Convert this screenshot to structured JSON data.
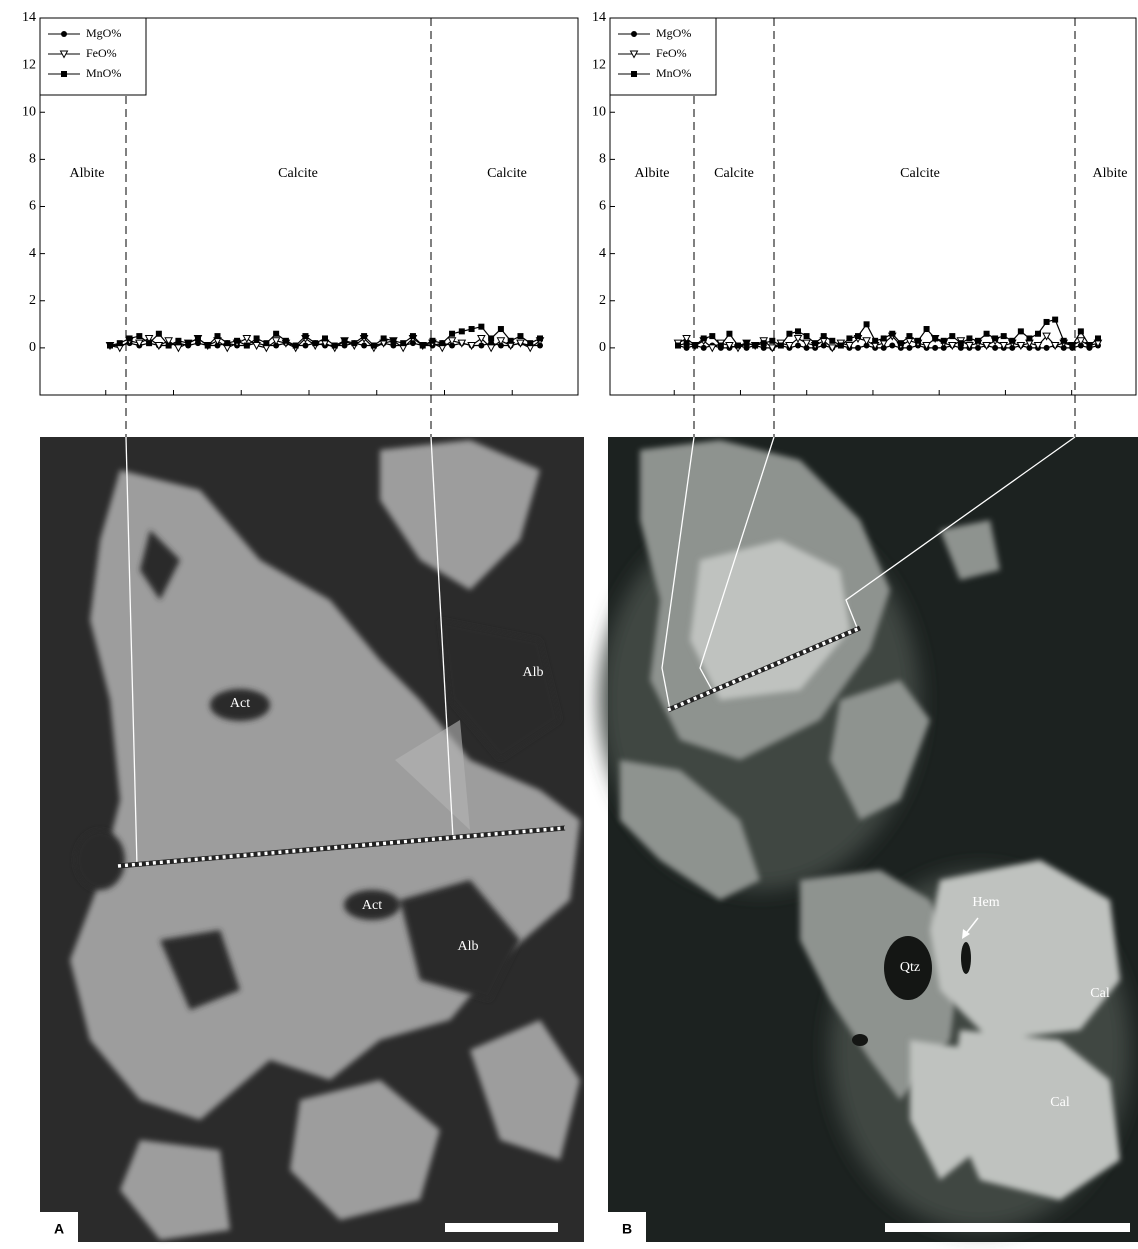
{
  "chart_data": [
    {
      "type": "line",
      "ylim": [
        -2,
        14
      ],
      "yticks": [
        0,
        2,
        4,
        6,
        8,
        10,
        12,
        14
      ],
      "legend": "upper left",
      "regions": [
        "Albite",
        "Calcite",
        "Calcite"
      ],
      "series": [
        {
          "name": "MgO%",
          "color": "#000000",
          "marker": "circle",
          "values": [
            0.1,
            0.1,
            0.2,
            0.1,
            0.2,
            0.1,
            0.1,
            0.2,
            0.1,
            0.2,
            0.1,
            0.1,
            0.2,
            0.1,
            0.1,
            0.2,
            0.1,
            0.1,
            0.2,
            0.1,
            0.1,
            0.2,
            0.1,
            0.1,
            0.1,
            0.2,
            0.1,
            0.1,
            0.2,
            0.1,
            0.1,
            0.2,
            0.1,
            0.1,
            0.2,
            0.1,
            0.2,
            0.1,
            0.1,
            0.2,
            0.1,
            0.1,
            0.2,
            0.1,
            0.1
          ]
        },
        {
          "name": "FeO%",
          "color": "#000000",
          "marker": "triangle",
          "values": [
            0.1,
            0,
            0.3,
            0.2,
            0.4,
            0.1,
            0.3,
            0,
            0.2,
            0.4,
            0.1,
            0.3,
            0,
            0.2,
            0.4,
            0.1,
            0,
            0.3,
            0.2,
            0,
            0.4,
            0.1,
            0.2,
            0,
            0.3,
            0.1,
            0.4,
            0,
            0.2,
            0.3,
            0,
            0.4,
            0.1,
            0.2,
            0,
            0.3,
            0.2,
            0.1,
            0.4,
            0,
            0.3,
            0.1,
            0.2,
            0,
            0.3
          ]
        },
        {
          "name": "MnO%",
          "color": "#000000",
          "marker": "square",
          "values": [
            0.1,
            0.2,
            0.4,
            0.5,
            0.2,
            0.6,
            0.1,
            0.3,
            0.2,
            0.4,
            0.1,
            0.5,
            0.2,
            0.3,
            0.1,
            0.4,
            0.2,
            0.6,
            0.3,
            0.1,
            0.5,
            0.2,
            0.4,
            0.1,
            0.3,
            0.2,
            0.5,
            0.1,
            0.4,
            0.3,
            0.2,
            0.5,
            0.1,
            0.3,
            0.2,
            0.6,
            0.7,
            0.8,
            0.9,
            0.4,
            0.8,
            0.3,
            0.5,
            0.2,
            0.4
          ]
        }
      ],
      "photo": {
        "panel": "A",
        "labels": [
          "Act",
          "Alb",
          "Act",
          "Alb"
        ]
      }
    },
    {
      "type": "line",
      "ylim": [
        -2,
        14
      ],
      "yticks": [
        0,
        2,
        4,
        6,
        8,
        10,
        12,
        14
      ],
      "legend": "upper left",
      "regions": [
        "Albite",
        "Calcite",
        "Calcite",
        "Albite"
      ],
      "series": [
        {
          "name": "MgO%",
          "color": "#000000",
          "marker": "circle",
          "values": [
            0.1,
            0,
            0.1,
            0,
            0.1,
            0,
            0,
            0.1,
            0,
            0.1,
            0,
            0,
            0.1,
            0,
            0.1,
            0,
            0,
            0.1,
            0,
            0.1,
            0,
            0,
            0.1,
            0,
            0,
            0.1,
            0,
            0,
            0.1,
            0,
            0,
            0,
            0.1,
            0,
            0,
            0,
            0.1,
            0,
            0,
            0,
            0.1,
            0,
            0,
            0,
            0.1,
            0,
            0,
            0.1,
            0,
            0.1
          ]
        },
        {
          "name": "FeO%",
          "color": "#000000",
          "marker": "triangle",
          "values": [
            0.2,
            0.4,
            0.1,
            0.3,
            0,
            0.2,
            0.1,
            0,
            0.2,
            0.1,
            0.3,
            0,
            0.2,
            0.1,
            0.4,
            0.2,
            0.1,
            0.3,
            0,
            0.2,
            0.1,
            0.4,
            0.3,
            0.1,
            0.2,
            0.5,
            0.1,
            0.3,
            0.2,
            0.1,
            0.4,
            0.2,
            0.1,
            0.3,
            0.1,
            0.2,
            0.1,
            0.3,
            0.1,
            0.2,
            0.1,
            0.2,
            0.1,
            0.5,
            0.1,
            0.2,
            0.1,
            0.3,
            0.1,
            0.2
          ]
        },
        {
          "name": "MnO%",
          "color": "#000000",
          "marker": "square",
          "values": [
            0.1,
            0.2,
            0.1,
            0.4,
            0.5,
            0.1,
            0.6,
            0.1,
            0.2,
            0.1,
            0.2,
            0.3,
            0.1,
            0.6,
            0.7,
            0.5,
            0.2,
            0.5,
            0.3,
            0.1,
            0.4,
            0.5,
            1.0,
            0.3,
            0.4,
            0.6,
            0.2,
            0.5,
            0.3,
            0.8,
            0.4,
            0.3,
            0.5,
            0.2,
            0.4,
            0.3,
            0.6,
            0.4,
            0.5,
            0.3,
            0.7,
            0.4,
            0.6,
            1.1,
            1.2,
            0.3,
            0.1,
            0.7,
            0.1,
            0.4
          ]
        }
      ],
      "photo": {
        "panel": "B",
        "labels": [
          "Hem",
          "Qtz",
          "Cal",
          "Cal"
        ]
      }
    }
  ]
}
